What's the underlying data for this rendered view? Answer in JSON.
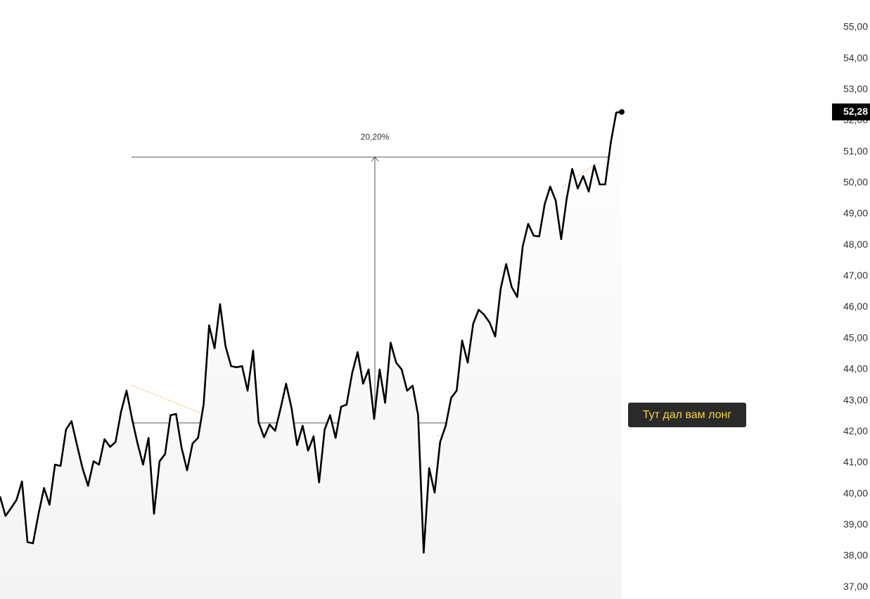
{
  "chart_data": {
    "type": "line",
    "series": [
      {
        "color": "#000000",
        "values": [
          39.92,
          39.29,
          39.54,
          39.81,
          40.4,
          38.45,
          38.41,
          39.36,
          40.19,
          39.65,
          40.94,
          40.9,
          42.07,
          42.34,
          41.57,
          40.83,
          40.26,
          41.05,
          40.94,
          41.76,
          41.51,
          41.67,
          42.64,
          43.32,
          42.41,
          41.62,
          40.94,
          41.8,
          39.36,
          41.05,
          41.28,
          42.53,
          42.57,
          41.48,
          40.76,
          41.62,
          41.8,
          42.87,
          45.42,
          44.68,
          46.1,
          44.74,
          44.11,
          44.07,
          44.11,
          43.32,
          44.61,
          42.3,
          41.82,
          42.23,
          42.03,
          42.75,
          43.54,
          42.75,
          41.57,
          42.19,
          41.39,
          41.85,
          40.37,
          42.07,
          42.53,
          41.8,
          42.8,
          42.87,
          43.88,
          44.56,
          43.54,
          44.0,
          42.41,
          44.0,
          42.93,
          44.86,
          44.22,
          44.0,
          43.32,
          43.48,
          42.53,
          38.11,
          40.83,
          40.04,
          41.67,
          42.19,
          43.09,
          43.32,
          44.93,
          44.22,
          45.47,
          45.92,
          45.76,
          45.51,
          45.06,
          46.6,
          47.39,
          46.65,
          46.33,
          47.96,
          48.68,
          48.3,
          48.28,
          49.32,
          49.88,
          49.43,
          48.19,
          49.5,
          50.45,
          49.82,
          50.22,
          49.72,
          50.56,
          49.95,
          49.95,
          51.29,
          52.26,
          52.28
        ],
        "value_labels": [
          null,
          null,
          null,
          null,
          null,
          null,
          null,
          null,
          null,
          null,
          null,
          null,
          null,
          null,
          null,
          null,
          null,
          null,
          null,
          null,
          null,
          null,
          null,
          null,
          null,
          null,
          null,
          null,
          null,
          null,
          null,
          null,
          null,
          null,
          null,
          null,
          null,
          null,
          null,
          null,
          null,
          null,
          null,
          null,
          null,
          null,
          null,
          null,
          null,
          null,
          null,
          null,
          null,
          null,
          null,
          null,
          null,
          null,
          null,
          null,
          null,
          null,
          null,
          null,
          null,
          null,
          null,
          null,
          null,
          null,
          null,
          null,
          null,
          null,
          null,
          null,
          null,
          null,
          null,
          null,
          null,
          null,
          null,
          null,
          null,
          null,
          null,
          null,
          null,
          null,
          null,
          null,
          null,
          null,
          null,
          null,
          null,
          null,
          null,
          null,
          null,
          null,
          null,
          null,
          null,
          null,
          null,
          null,
          null,
          null,
          null,
          null,
          null,
          "52,28"
        ]
      }
    ],
    "ylim": [
      36.62,
      55.88
    ],
    "yticks": [
      {
        "value": 37,
        "label": "37,00"
      },
      {
        "value": 38,
        "label": "38,00"
      },
      {
        "value": 39,
        "label": "39,00"
      },
      {
        "value": 40,
        "label": "40,00"
      },
      {
        "value": 41,
        "label": "41,00"
      },
      {
        "value": 42,
        "label": "42,00"
      },
      {
        "value": 43,
        "label": "43,00"
      },
      {
        "value": 44,
        "label": "44,00"
      },
      {
        "value": 45,
        "label": "45,00"
      },
      {
        "value": 46,
        "label": "46,00"
      },
      {
        "value": 47,
        "label": "47,00"
      },
      {
        "value": 48,
        "label": "48,00"
      },
      {
        "value": 49,
        "label": "49,00"
      },
      {
        "value": 50,
        "label": "50,00"
      },
      {
        "value": 51,
        "label": "51,00"
      },
      {
        "value": 52,
        "label": "52,00"
      },
      {
        "value": 53,
        "label": "53,00"
      },
      {
        "value": 54,
        "label": "54,00"
      },
      {
        "value": 55,
        "label": "55,00"
      }
    ],
    "measurement": {
      "from": 42.28,
      "to": 50.83,
      "label": "20,20%"
    },
    "annotation": "Тут дал вам лонг"
  }
}
